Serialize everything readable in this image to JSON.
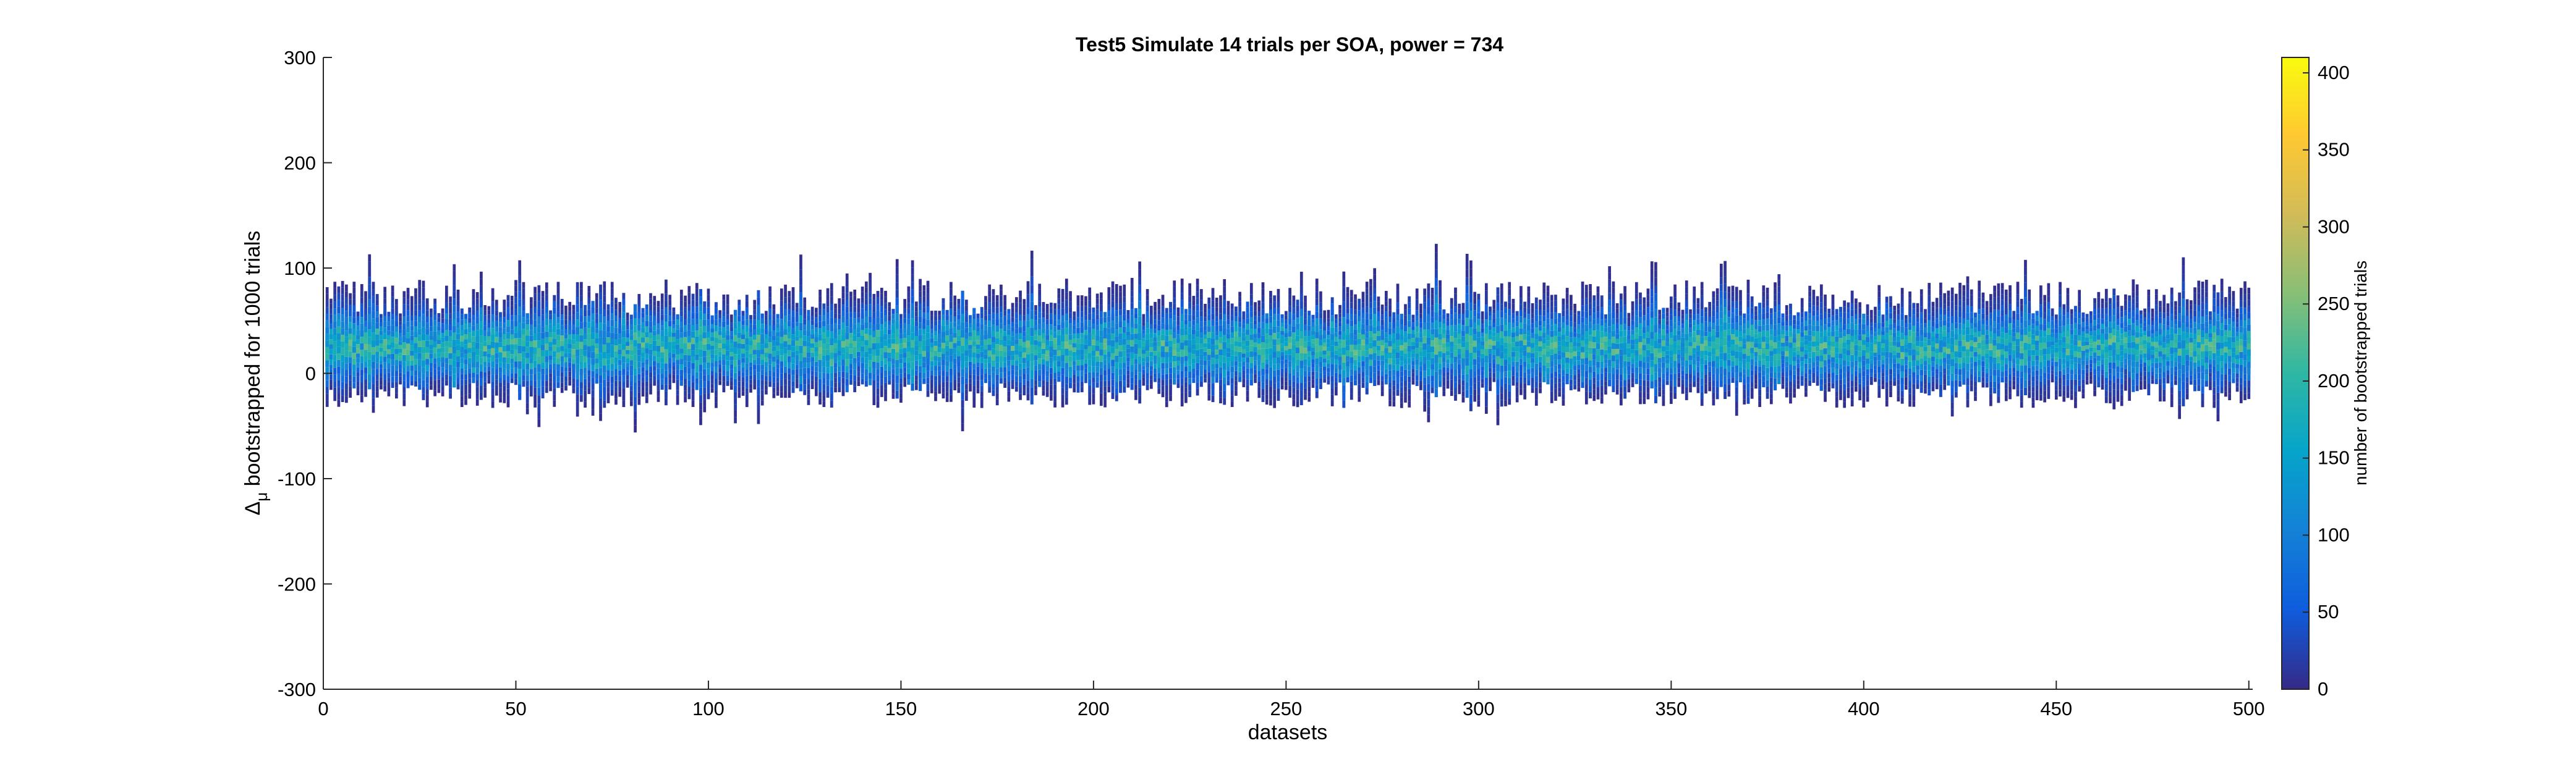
{
  "chart_data": {
    "type": "heatmap",
    "title": "Test5 Simulate 14 trials per SOA, power = 734",
    "xlabel": "datasets",
    "ylabel": {
      "symbol": "Δ",
      "subscript": "μ",
      "text": "bootstrapped for 1000 trials"
    },
    "xlim": [
      0,
      501
    ],
    "ylim": [
      -300,
      300
    ],
    "xticks": [
      0,
      50,
      100,
      150,
      200,
      250,
      300,
      350,
      400,
      450,
      500
    ],
    "yticks": [
      -300,
      -200,
      -100,
      0,
      100,
      200,
      300
    ],
    "colorbar": {
      "label": "number of bootstrapped trials",
      "range": [
        0,
        410
      ],
      "ticks": [
        0,
        50,
        100,
        150,
        200,
        250,
        300,
        350,
        400
      ],
      "colormap": "parula",
      "colors": [
        "#352a87",
        "#0f5cdd",
        "#1481d6",
        "#06a4ca",
        "#2eb7a4",
        "#87bf77",
        "#d1bb59",
        "#fec832",
        "#f9fb0e"
      ]
    },
    "grid": false,
    "datasets": 500,
    "bootstrap_trials": 1000,
    "typical_central_value": 25,
    "typical_range": [
      -30,
      90
    ],
    "extreme_max": 123,
    "extreme_min": -55
  }
}
